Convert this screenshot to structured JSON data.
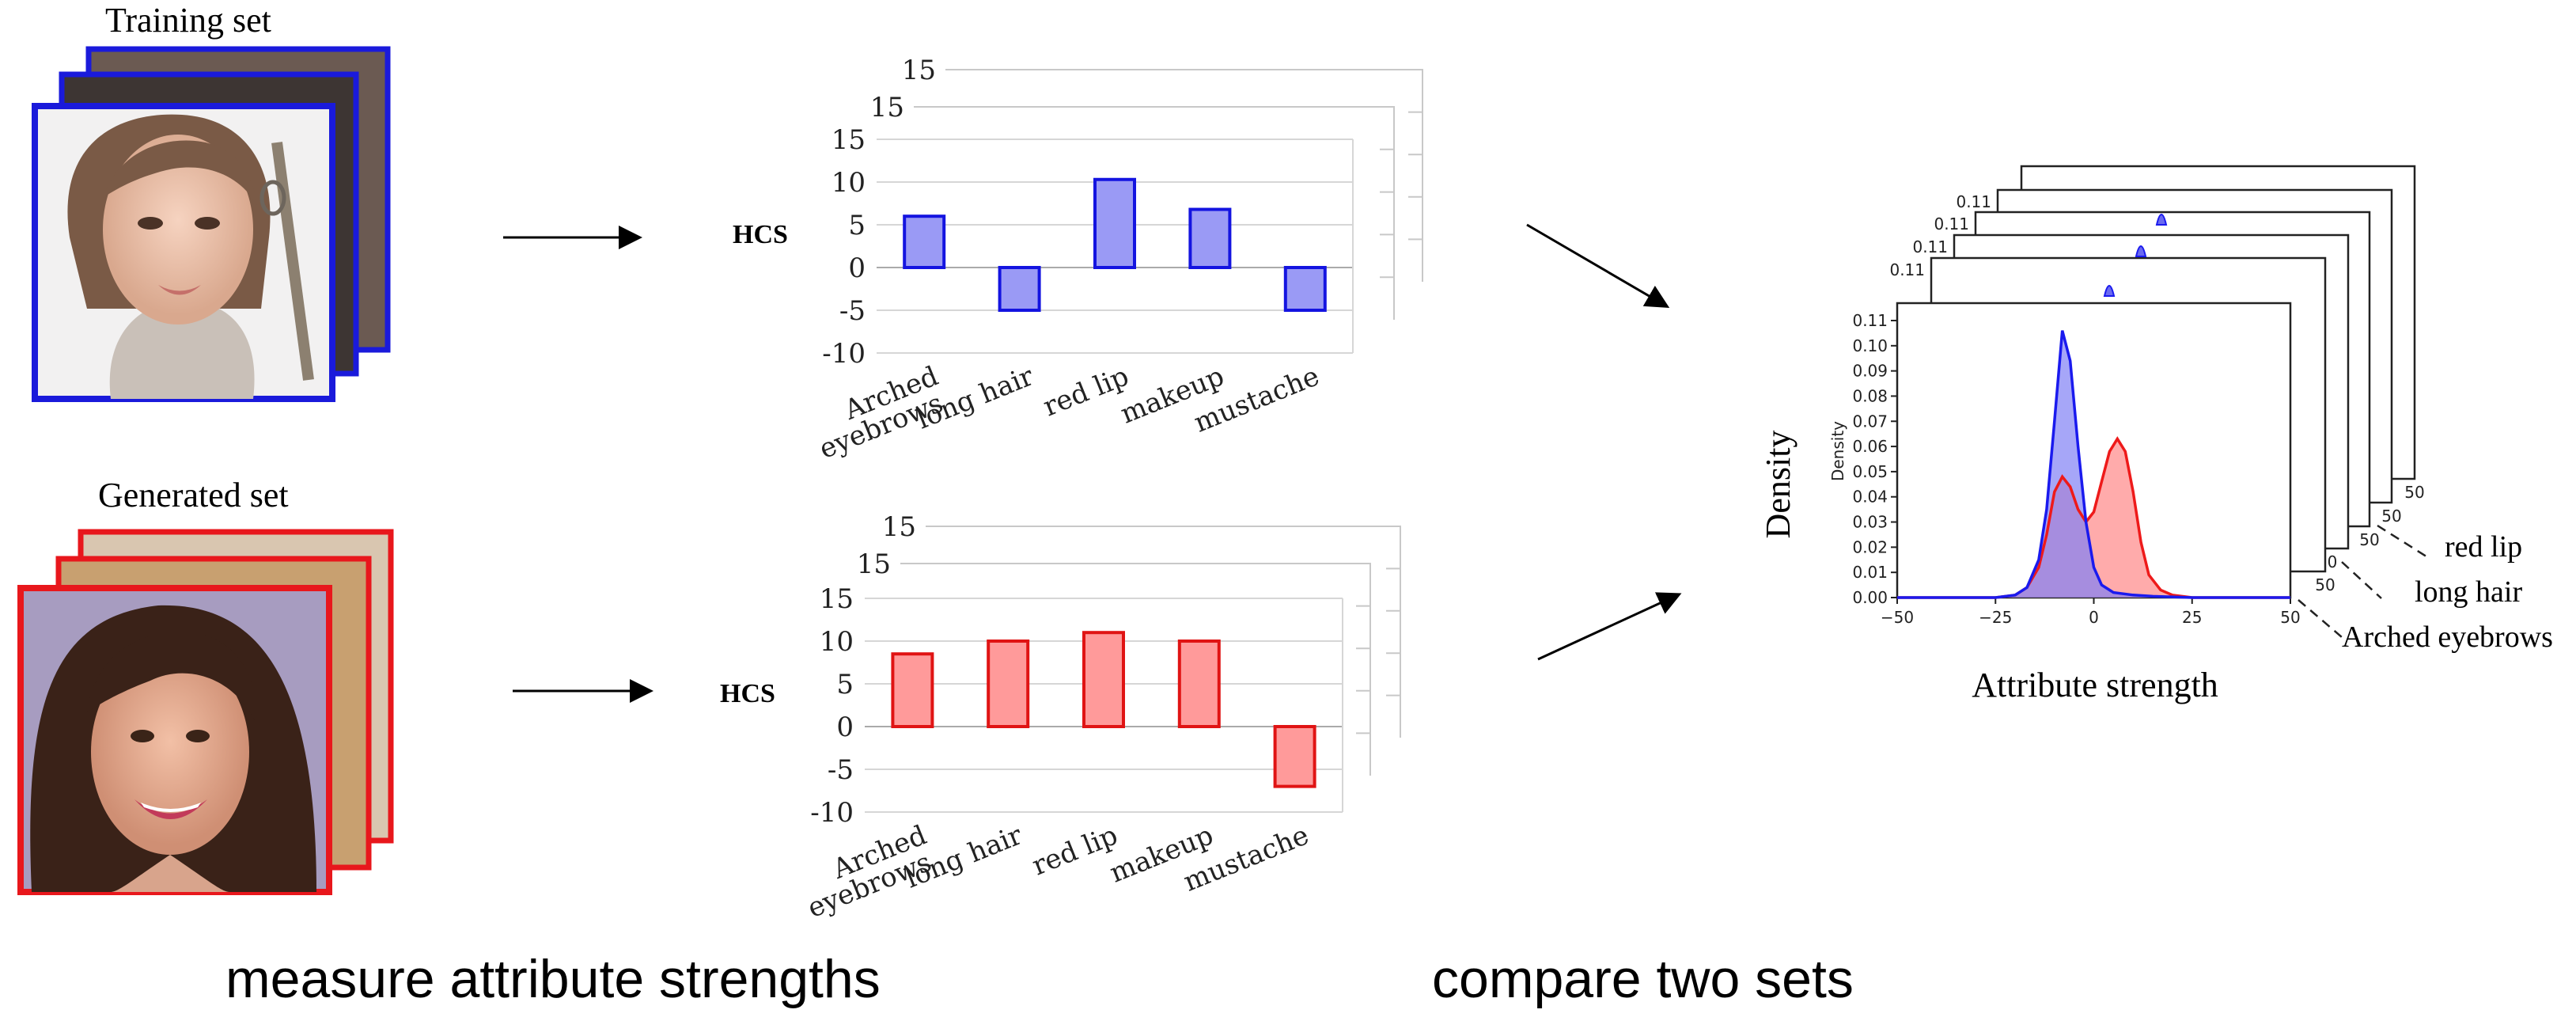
{
  "training_set": {
    "title": "Training set",
    "frame_color": "#1a1adb"
  },
  "generated_set": {
    "title": "Generated set",
    "frame_color": "#e8171c"
  },
  "hcs_label": "HCS",
  "captions": {
    "measure": "measure attribute strengths",
    "compare": "compare two sets"
  },
  "chart_data": [
    {
      "type": "bar",
      "id": "training-hcs",
      "categories": [
        "Arched\neyebrows",
        "long hair",
        "red lip",
        "makeup",
        "mustache"
      ],
      "values": [
        6,
        -5,
        10.3,
        6.8,
        -5
      ],
      "ylabel": "HCS",
      "ylim": [
        -10,
        15
      ],
      "yticks": [
        -10,
        -5,
        0,
        5,
        10,
        15
      ],
      "back_layer_top_ticks": [
        "15",
        "15"
      ],
      "fill": "#9a9af5",
      "stroke": "#1414e0",
      "grid": true
    },
    {
      "type": "bar",
      "id": "generated-hcs",
      "categories": [
        "Arched\neyebrows",
        "long hair",
        "red lip",
        "makeup",
        "mustache"
      ],
      "values": [
        8.5,
        10,
        11,
        10,
        -7
      ],
      "ylabel": "HCS",
      "ylim": [
        -10,
        15
      ],
      "yticks": [
        -10,
        -5,
        0,
        5,
        10,
        15
      ],
      "back_layer_top_ticks": [
        "15",
        "15"
      ],
      "fill": "#ff9a9a",
      "stroke": "#e01414",
      "grid": true
    },
    {
      "type": "area",
      "id": "attribute-density",
      "xlabel": "Attribute strength",
      "ylabel": "Density",
      "inner_ylabel": "Density",
      "xlim": [
        -50,
        50
      ],
      "xticks": [
        "−50",
        "−25",
        "0",
        "25",
        "50"
      ],
      "ylim": [
        0,
        0.11
      ],
      "yticks": [
        "0.00",
        "0.01",
        "0.02",
        "0.03",
        "0.04",
        "0.05",
        "0.06",
        "0.07",
        "0.08",
        "0.09",
        "0.10",
        "0.11"
      ],
      "back_layer_ticks": [
        "0.11",
        "0.11",
        "0.11",
        "0.11"
      ],
      "back_layer_x_ticks": [
        "50",
        "50",
        "50",
        "0",
        "50"
      ],
      "layer_labels": [
        "Arched eyebrows",
        "long hair",
        "red lip"
      ],
      "series": [
        {
          "color": "#1a1aee",
          "points": [
            [
              -50,
              0
            ],
            [
              -25,
              0
            ],
            [
              -20,
              0.001
            ],
            [
              -17,
              0.004
            ],
            [
              -14,
              0.015
            ],
            [
              -12,
              0.035
            ],
            [
              -10,
              0.07
            ],
            [
              -8,
              0.106
            ],
            [
              -6,
              0.094
            ],
            [
              -4,
              0.06
            ],
            [
              -2,
              0.03
            ],
            [
              0,
              0.012
            ],
            [
              2,
              0.005
            ],
            [
              5,
              0.002
            ],
            [
              10,
              0.001
            ],
            [
              15,
              0.0005
            ],
            [
              25,
              0
            ],
            [
              50,
              0
            ]
          ]
        },
        {
          "color": "#ee1a1a",
          "points": [
            [
              -50,
              0
            ],
            [
              -25,
              0
            ],
            [
              -20,
              0.001
            ],
            [
              -17,
              0.004
            ],
            [
              -14,
              0.012
            ],
            [
              -12,
              0.025
            ],
            [
              -10,
              0.042
            ],
            [
              -8,
              0.048
            ],
            [
              -6,
              0.044
            ],
            [
              -4,
              0.035
            ],
            [
              -2,
              0.03
            ],
            [
              0,
              0.034
            ],
            [
              2,
              0.046
            ],
            [
              4,
              0.058
            ],
            [
              6,
              0.063
            ],
            [
              8,
              0.058
            ],
            [
              10,
              0.042
            ],
            [
              12,
              0.022
            ],
            [
              14,
              0.009
            ],
            [
              17,
              0.003
            ],
            [
              20,
              0.001
            ],
            [
              25,
              0
            ],
            [
              50,
              0
            ]
          ]
        }
      ],
      "fill_colors": [
        "#8080f5",
        "#ff8f8f",
        "#8f55b5"
      ]
    }
  ]
}
